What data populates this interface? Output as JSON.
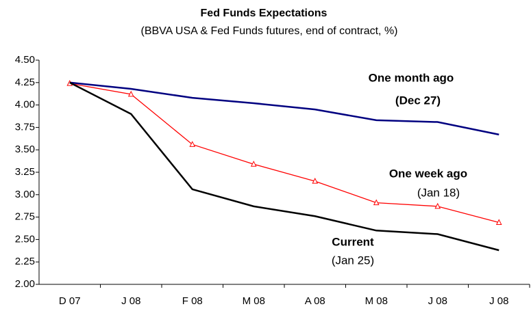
{
  "chart_data": {
    "type": "line",
    "title": "Fed Funds Expectations",
    "subtitle": "(BBVA USA & Fed Funds futures, end of contract, %)",
    "categories": [
      "D 07",
      "J 08",
      "F 08",
      "M 08",
      "A 08",
      "M 08",
      "J 08",
      "J 08"
    ],
    "series": [
      {
        "name": "One month ago",
        "sublabel": "(Dec 27)",
        "color": "#000080",
        "marker": "none",
        "values": [
          4.25,
          4.18,
          4.08,
          4.02,
          3.95,
          3.83,
          3.81,
          3.67
        ]
      },
      {
        "name": "One week ago",
        "sublabel": "(Jan 18)",
        "color": "#ff0000",
        "marker": "triangle",
        "values": [
          4.24,
          4.12,
          3.56,
          3.34,
          3.15,
          2.91,
          2.87,
          2.69
        ]
      },
      {
        "name": "Current",
        "sublabel": "(Jan 25)",
        "color": "#000000",
        "marker": "none",
        "values": [
          4.25,
          3.9,
          3.06,
          2.87,
          2.76,
          2.6,
          2.56,
          2.38
        ]
      }
    ],
    "ylim": [
      2.0,
      4.5
    ],
    "yticks": [
      {
        "value": 2.0,
        "label": "2.00"
      },
      {
        "value": 2.25,
        "label": "2.25"
      },
      {
        "value": 2.5,
        "label": "2.50"
      },
      {
        "value": 2.75,
        "label": "2.75"
      },
      {
        "value": 3.0,
        "label": "3.00"
      },
      {
        "value": 3.25,
        "label": "3.25"
      },
      {
        "value": 3.5,
        "label": "3.50"
      },
      {
        "value": 3.75,
        "label": "3.75"
      },
      {
        "value": 4.0,
        "label": "4.00"
      },
      {
        "value": 4.25,
        "label": "4.25"
      },
      {
        "value": 4.5,
        "label": "4.50"
      }
    ],
    "grid": false
  }
}
